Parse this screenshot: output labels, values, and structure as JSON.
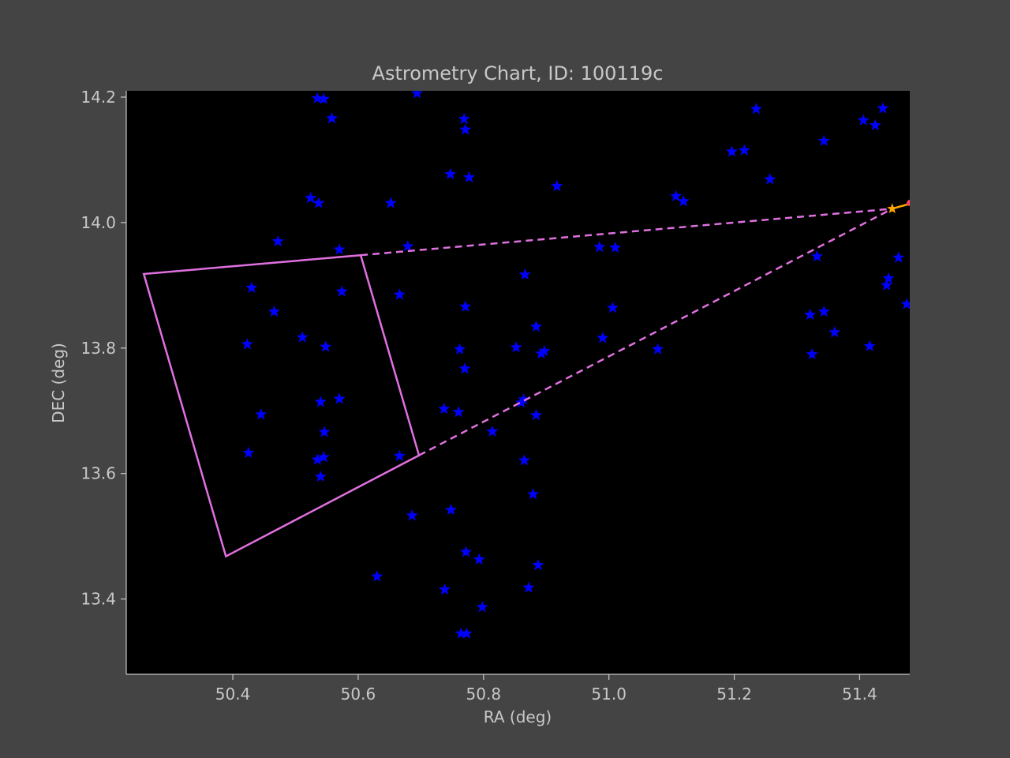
{
  "chart_data": {
    "type": "scatter",
    "title": "Astrometry Chart, ID: 100119c",
    "xlabel": "RA (deg)",
    "ylabel": "DEC (deg)",
    "xlim": [
      50.23,
      51.48
    ],
    "ylim": [
      13.28,
      14.21
    ],
    "x_ticks": [
      50.4,
      50.6,
      50.8,
      51.0,
      51.2,
      51.4
    ],
    "x_tick_labels": [
      "50.4",
      "50.6",
      "50.8",
      "51.0",
      "51.2",
      "51.4"
    ],
    "y_ticks": [
      13.4,
      13.6,
      13.8,
      14.0,
      14.2
    ],
    "y_tick_labels": [
      "13.4",
      "13.6",
      "13.8",
      "14.0",
      "14.2"
    ],
    "grid": false,
    "colors": {
      "background": "#444444",
      "plot_area": "#000000",
      "stars": "#0000ff",
      "field_outline": "#e070e0",
      "target_marker": "#ffa500",
      "target_marker_2": "#ff4060",
      "text": "#c8c8c8"
    },
    "stars": [
      [
        50.535,
        14.198
      ],
      [
        50.545,
        14.197
      ],
      [
        50.558,
        14.166
      ],
      [
        50.694,
        14.206
      ],
      [
        50.769,
        14.165
      ],
      [
        50.771,
        14.148
      ],
      [
        50.747,
        14.077
      ],
      [
        50.777,
        14.072
      ],
      [
        50.524,
        14.039
      ],
      [
        50.537,
        14.031
      ],
      [
        50.652,
        14.031
      ],
      [
        50.472,
        13.97
      ],
      [
        50.57,
        13.957
      ],
      [
        50.679,
        13.962
      ],
      [
        50.43,
        13.896
      ],
      [
        50.574,
        13.89
      ],
      [
        50.666,
        13.885
      ],
      [
        50.466,
        13.858
      ],
      [
        50.511,
        13.817
      ],
      [
        50.423,
        13.806
      ],
      [
        50.548,
        13.802
      ],
      [
        50.771,
        13.866
      ],
      [
        50.762,
        13.798
      ],
      [
        50.77,
        13.767
      ],
      [
        50.54,
        13.714
      ],
      [
        50.57,
        13.719
      ],
      [
        50.445,
        13.694
      ],
      [
        50.546,
        13.666
      ],
      [
        50.425,
        13.633
      ],
      [
        50.535,
        13.622
      ],
      [
        50.545,
        13.626
      ],
      [
        50.54,
        13.595
      ],
      [
        50.666,
        13.628
      ],
      [
        50.737,
        13.703
      ],
      [
        50.76,
        13.698
      ],
      [
        50.814,
        13.667
      ],
      [
        50.686,
        13.533
      ],
      [
        50.748,
        13.542
      ],
      [
        50.63,
        13.436
      ],
      [
        50.738,
        13.415
      ],
      [
        50.772,
        13.475
      ],
      [
        50.793,
        13.463
      ],
      [
        50.798,
        13.387
      ],
      [
        50.764,
        13.345
      ],
      [
        50.773,
        13.345
      ],
      [
        50.866,
        13.917
      ],
      [
        50.884,
        13.834
      ],
      [
        50.852,
        13.801
      ],
      [
        50.892,
        13.791
      ],
      [
        50.897,
        13.795
      ],
      [
        50.86,
        13.713
      ],
      [
        50.864,
        13.718
      ],
      [
        50.884,
        13.693
      ],
      [
        50.865,
        13.621
      ],
      [
        50.879,
        13.567
      ],
      [
        50.887,
        13.454
      ],
      [
        50.872,
        13.418
      ],
      [
        50.917,
        14.058
      ],
      [
        50.985,
        13.961
      ],
      [
        51.01,
        13.96
      ],
      [
        51.006,
        13.864
      ],
      [
        50.99,
        13.816
      ],
      [
        51.078,
        13.798
      ],
      [
        51.107,
        14.042
      ],
      [
        51.119,
        14.034
      ],
      [
        51.196,
        14.113
      ],
      [
        51.216,
        14.115
      ],
      [
        51.235,
        14.181
      ],
      [
        51.257,
        14.069
      ],
      [
        51.343,
        14.13
      ],
      [
        51.406,
        14.163
      ],
      [
        51.425,
        14.155
      ],
      [
        51.437,
        14.182
      ],
      [
        51.332,
        13.946
      ],
      [
        51.321,
        13.853
      ],
      [
        51.343,
        13.858
      ],
      [
        51.324,
        13.79
      ],
      [
        51.36,
        13.825
      ],
      [
        51.416,
        13.803
      ],
      [
        51.462,
        13.944
      ],
      [
        51.446,
        13.911
      ],
      [
        51.443,
        13.9
      ],
      [
        51.475,
        13.87
      ]
    ],
    "field_polygon": [
      [
        50.258,
        13.918
      ],
      [
        50.604,
        13.948
      ],
      [
        50.697,
        13.629
      ],
      [
        50.389,
        13.468
      ]
    ],
    "projection_lines": [
      [
        [
          50.604,
          13.948
        ],
        [
          51.452,
          14.022
        ]
      ],
      [
        [
          50.697,
          13.629
        ],
        [
          51.452,
          14.022
        ]
      ]
    ],
    "target_point": [
      51.452,
      14.022
    ],
    "target_line_end": [
      51.48,
      14.03
    ]
  }
}
